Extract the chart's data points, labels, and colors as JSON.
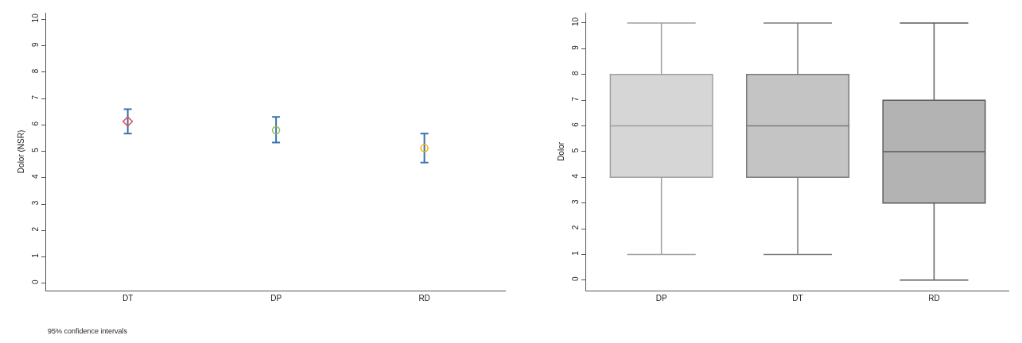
{
  "chart_data": [
    {
      "type": "scatter",
      "ylabel": "Dolor (NSR)",
      "categories": [
        "DT",
        "DP",
        "RD"
      ],
      "ylim": [
        -0.27,
        10.25
      ],
      "yticks": [
        0,
        1,
        2,
        3,
        4,
        5,
        6,
        7,
        8,
        9,
        10
      ],
      "series": [
        {
          "x": [
            "DT"
          ],
          "values": [
            6.13
          ],
          "errors": [
            [
              5.67,
              6.6
            ]
          ],
          "color": "#e0505a",
          "marker": "diamond"
        },
        {
          "x": [
            "DP"
          ],
          "values": [
            5.8
          ],
          "errors": [
            [
              5.33,
              6.3
            ]
          ],
          "color": "#8cc04a",
          "marker": "circle"
        },
        {
          "x": [
            "RD"
          ],
          "values": [
            5.12
          ],
          "errors": [
            [
              4.57,
              5.67
            ]
          ],
          "color": "#ffaa00",
          "marker": "circle"
        }
      ],
      "annotations": [
        "95% confidence intervals"
      ]
    },
    {
      "type": "box",
      "ylabel": "Dolor",
      "categories": [
        "DP",
        "DT",
        "RD"
      ],
      "ylim": [
        -0.4,
        10.4
      ],
      "yticks": [
        0,
        1,
        2,
        3,
        4,
        5,
        6,
        7,
        8,
        9,
        10
      ],
      "colors": [
        "#d6d6d6",
        "#c4c4c4",
        "#b3b3b3"
      ],
      "boxes": [
        {
          "low": 1,
          "q1": 4,
          "median": 6,
          "q3": 8,
          "high": 10
        },
        {
          "low": 1,
          "q1": 4,
          "median": 6,
          "q3": 8,
          "high": 10
        },
        {
          "low": 0,
          "q1": 3,
          "median": 5,
          "q3": 7,
          "high": 10
        }
      ]
    }
  ]
}
